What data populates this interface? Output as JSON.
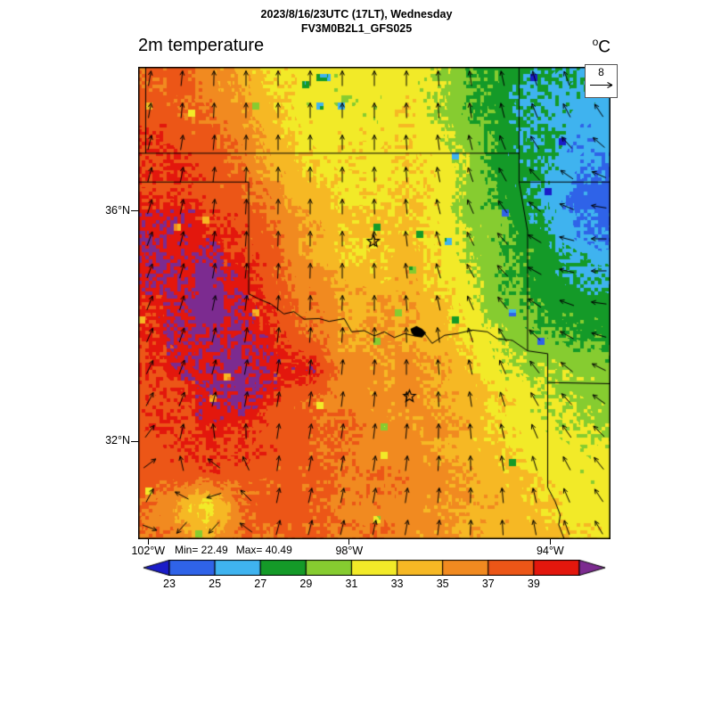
{
  "header": {
    "line1": "2023/8/16/23UTC (17LT), Wednesday",
    "line2": "FV3M0B2L1_GFS025"
  },
  "title_unit": {
    "sup": "o",
    "main": "C"
  },
  "footer": {
    "min_label": "Min= 22.49",
    "max_label": "Max= 40.49"
  },
  "chart_data": {
    "type": "heatmap",
    "title": "2m temperature",
    "unit": "°C",
    "datetime": "2023/8/16/23UTC (17LT), Wednesday",
    "model": "FV3M0B2L1_GFS025",
    "stat_min": 22.49,
    "stat_max": 40.49,
    "wind_reference": 8,
    "lon_range": [
      -102.2,
      -92.8
    ],
    "lat_range": [
      30.3,
      38.5
    ],
    "xticks": [
      {
        "label": "102°W",
        "lon": -102
      },
      {
        "label": "98°W",
        "lon": -98
      },
      {
        "label": "94°W",
        "lon": -94
      }
    ],
    "yticks": [
      {
        "label": "36°N",
        "lat": 36
      },
      {
        "label": "32°N",
        "lat": 32
      }
    ],
    "value_levels": [
      23,
      25,
      27,
      29,
      31,
      33,
      35,
      37,
      39,
      40.2
    ],
    "value_colors": [
      "#1a1cc8",
      "#2f63e8",
      "#3fb3ef",
      "#149a28",
      "#86cc30",
      "#f2ea28",
      "#f6b824",
      "#f18a20",
      "#ec5617",
      "#e3170d",
      "#7c2b90"
    ],
    "colorbar_tick_labels": [
      "23",
      "25",
      "27",
      "29",
      "31",
      "33",
      "35",
      "37",
      "39"
    ],
    "temperature_grid": {
      "rows": 15,
      "cols": 15,
      "order": "north-to-south",
      "values_c": [
        [
          37.5,
          37.5,
          36.5,
          34.5,
          33,
          32,
          31.5,
          32,
          32.5,
          31,
          29,
          28,
          27.5,
          27,
          26
        ],
        [
          38,
          38,
          37,
          35,
          33.5,
          32,
          31.5,
          32,
          32.5,
          31,
          29,
          27.5,
          27,
          26.5,
          26
        ],
        [
          38.5,
          38.5,
          37.5,
          36,
          34,
          32.5,
          32,
          32,
          32.5,
          31.5,
          29.5,
          28,
          27,
          26,
          25.5
        ],
        [
          39,
          39,
          38,
          37,
          35,
          33,
          32.5,
          32.5,
          33,
          32,
          30,
          28,
          27,
          25.5,
          25
        ],
        [
          39.5,
          39.5,
          39,
          38,
          36,
          34,
          33,
          33,
          33,
          32,
          30,
          28.5,
          27,
          24.5,
          23.8
        ],
        [
          39.5,
          40,
          39.5,
          38.5,
          37,
          35,
          33.5,
          33,
          33.5,
          32.5,
          30.5,
          29,
          27.5,
          25,
          24.5
        ],
        [
          39.5,
          40.2,
          40.5,
          40,
          38,
          36,
          34,
          33.5,
          34,
          33,
          31,
          29,
          28,
          27,
          26.5
        ],
        [
          39.5,
          40.3,
          40.6,
          40.4,
          38.5,
          36.5,
          35,
          34.5,
          34.5,
          33.5,
          31.5,
          29.5,
          28.5,
          28,
          27.5
        ],
        [
          39,
          40,
          40.7,
          40.8,
          39.6,
          37,
          35.5,
          35,
          35,
          34,
          32.5,
          30.5,
          29.5,
          29,
          28.5
        ],
        [
          39,
          39.5,
          40.2,
          40.8,
          39.8,
          40.3,
          36,
          35.5,
          35.5,
          34.5,
          33,
          31.5,
          30.5,
          30,
          29.5
        ],
        [
          38.5,
          39,
          39.5,
          40.4,
          38.5,
          37.5,
          36.5,
          36,
          35.5,
          35,
          33.5,
          32.5,
          31.5,
          31,
          30.5
        ],
        [
          38,
          38.5,
          39,
          39,
          38,
          37.5,
          37,
          36.5,
          36,
          35,
          34,
          33,
          32,
          31.5,
          31
        ],
        [
          38,
          38,
          38.5,
          38.5,
          38,
          37.5,
          37,
          36.5,
          36,
          35.5,
          34.5,
          33.5,
          32.5,
          32,
          31.5
        ],
        [
          37.5,
          36,
          31.5,
          36.5,
          38,
          37.5,
          37,
          36.5,
          36,
          35.5,
          34.5,
          34,
          33,
          32.5,
          32
        ],
        [
          37,
          36.5,
          34,
          36.5,
          37.5,
          37.5,
          37,
          37,
          36,
          35.5,
          35,
          34,
          33.5,
          32.5,
          32
        ]
      ]
    },
    "wind": {
      "direction_deg": {
        "rows": 13,
        "cols": 13,
        "values": [
          [
            80,
            85,
            90,
            90,
            90,
            90,
            90,
            90,
            95,
            100,
            105,
            110,
            115
          ],
          [
            80,
            85,
            88,
            90,
            90,
            90,
            90,
            92,
            95,
            100,
            110,
            118,
            125
          ],
          [
            75,
            80,
            85,
            90,
            90,
            90,
            90,
            95,
            100,
            110,
            122,
            135,
            145
          ],
          [
            75,
            80,
            85,
            88,
            90,
            90,
            92,
            95,
            105,
            115,
            132,
            150,
            165
          ],
          [
            70,
            78,
            85,
            88,
            90,
            90,
            92,
            98,
            108,
            122,
            142,
            162,
            178
          ],
          [
            70,
            75,
            82,
            86,
            88,
            90,
            92,
            98,
            110,
            126,
            146,
            166,
            182
          ],
          [
            68,
            74,
            80,
            85,
            88,
            88,
            90,
            95,
            105,
            120,
            140,
            158,
            172
          ],
          [
            66,
            72,
            78,
            82,
            85,
            86,
            88,
            92,
            100,
            112,
            130,
            148,
            162
          ],
          [
            64,
            70,
            76,
            80,
            82,
            84,
            86,
            90,
            96,
            105,
            120,
            136,
            150
          ],
          [
            60,
            70,
            80,
            80,
            80,
            82,
            84,
            86,
            92,
            100,
            112,
            126,
            140
          ],
          [
            45,
            95,
            135,
            85,
            80,
            80,
            82,
            84,
            88,
            95,
            105,
            118,
            130
          ],
          [
            15,
            160,
            205,
            80,
            78,
            78,
            80,
            82,
            86,
            92,
            100,
            112,
            124
          ],
          [
            340,
            210,
            235,
            75,
            75,
            76,
            78,
            80,
            84,
            90,
            98,
            108,
            120
          ]
        ]
      }
    },
    "overlays": {
      "boundaries_lonlat": [
        [
          [
            -102.2,
            37
          ],
          [
            -94.62,
            37
          ]
        ],
        [
          [
            -94.62,
            38.5
          ],
          [
            -94.62,
            36.5
          ]
        ],
        [
          [
            -94.62,
            36.5
          ],
          [
            -92.8,
            36.5
          ]
        ],
        [
          [
            -94.62,
            36.5
          ],
          [
            -94.45,
            35.65
          ],
          [
            -94.45,
            33.57
          ]
        ],
        [
          [
            -102.2,
            36.5
          ],
          [
            -100,
            36.5
          ]
        ],
        [
          [
            -100,
            36.5
          ],
          [
            -100,
            34.56
          ]
        ],
        [
          [
            -100,
            34.56
          ],
          [
            -99.8,
            34.47
          ],
          [
            -99.55,
            34.38
          ],
          [
            -99.3,
            34.21
          ],
          [
            -99.1,
            34.25
          ],
          [
            -98.9,
            34.12
          ],
          [
            -98.6,
            34.13
          ],
          [
            -98.4,
            34.08
          ],
          [
            -98.1,
            34.13
          ],
          [
            -97.95,
            33.9
          ],
          [
            -97.7,
            33.92
          ],
          [
            -97.5,
            33.83
          ],
          [
            -97.3,
            33.9
          ],
          [
            -97.1,
            33.8
          ],
          [
            -96.9,
            33.87
          ],
          [
            -96.7,
            33.83
          ],
          [
            -96.55,
            33.93
          ],
          [
            -96.35,
            33.7
          ],
          [
            -96.1,
            33.84
          ],
          [
            -95.85,
            33.87
          ],
          [
            -95.55,
            33.93
          ],
          [
            -95.25,
            33.9
          ],
          [
            -95.05,
            33.78
          ],
          [
            -94.75,
            33.75
          ],
          [
            -94.45,
            33.57
          ]
        ],
        [
          [
            -94.45,
            33.57
          ],
          [
            -94.05,
            33.52
          ],
          [
            -94.05,
            31.2
          ],
          [
            -93.9,
            30.95
          ],
          [
            -93.8,
            30.72
          ],
          [
            -93.83,
            30.55
          ],
          [
            -93.72,
            30.3
          ]
        ],
        [
          [
            -94.05,
            33.02
          ],
          [
            -92.8,
            33.0
          ]
        ],
        [
          [
            -102.05,
            38.5
          ],
          [
            -102.05,
            37
          ]
        ]
      ],
      "lake_lonlat": [
        [
          -96.78,
          33.95
        ],
        [
          -96.66,
          34.0
        ],
        [
          -96.55,
          33.95
        ],
        [
          -96.47,
          33.88
        ],
        [
          -96.55,
          33.8
        ],
        [
          -96.7,
          33.82
        ],
        [
          -96.76,
          33.88
        ]
      ],
      "star_markers_lonlat": [
        [
          -97.52,
          35.47
        ],
        [
          -96.8,
          32.78
        ]
      ]
    }
  }
}
